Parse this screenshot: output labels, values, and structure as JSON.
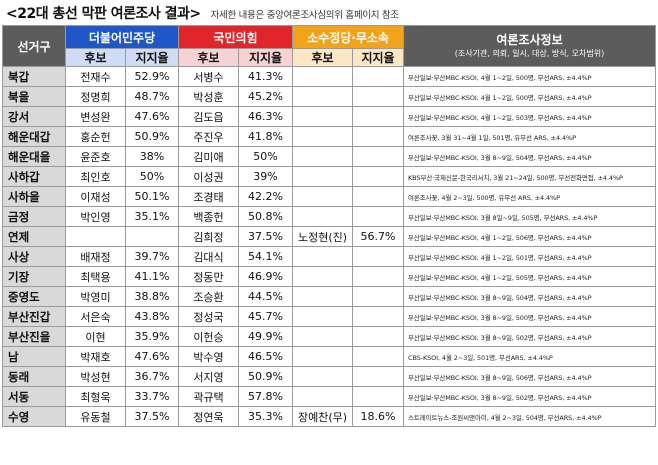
{
  "header": {
    "title": "<22대 총선 막판 여론조사 결과>",
    "subtitle": "자세한 내용은 중앙여론조사심의위 홈페이지 참조"
  },
  "columns": {
    "district": "선거구",
    "dem": "더불어민주당",
    "ppp": "국민의힘",
    "minor": "소수정당·무소속",
    "info": "여론조사정보",
    "info_sub": "(조사기관, 의뢰, 일시, 대상, 방식, 오차범위)",
    "candidate": "후보",
    "support": "지지율"
  },
  "rows": [
    {
      "district": "북갑",
      "dem_name": "전재수",
      "dem_pct": "52.9%",
      "ppp_name": "서병수",
      "ppp_pct": "41.3%",
      "minor_name": "",
      "minor_pct": "",
      "info": "부산일보·부산MBC-KSOI, 4월 1~2일, 500명, 무선ARS, ±4.4%P"
    },
    {
      "district": "북을",
      "dem_name": "정명희",
      "dem_pct": "48.7%",
      "ppp_name": "박성훈",
      "ppp_pct": "45.2%",
      "minor_name": "",
      "minor_pct": "",
      "info": "부산일보·부산MBC-KSOI, 4월 1~2일, 500명, 무선ARS, ±4.4%P"
    },
    {
      "district": "강서",
      "dem_name": "변성완",
      "dem_pct": "47.6%",
      "ppp_name": "김도읍",
      "ppp_pct": "46.3%",
      "minor_name": "",
      "minor_pct": "",
      "info": "부산일보·부산MBC-KSOI, 4월 1~2일, 503명, 무선ARS, ±4.4%P"
    },
    {
      "district": "해운대갑",
      "dem_name": "홍순헌",
      "dem_pct": "50.9%",
      "ppp_name": "주진우",
      "ppp_pct": "41.8%",
      "minor_name": "",
      "minor_pct": "",
      "info": "여론조사꽃, 3월 31~4월 1일, 501명, 유무선 ARS, ±4.4%P"
    },
    {
      "district": "해운대을",
      "dem_name": "윤준호",
      "dem_pct": "38%",
      "ppp_name": "김미애",
      "ppp_pct": "50%",
      "minor_name": "",
      "minor_pct": "",
      "info": "부산일보·부산MBC-KSOI, 3월 8~9일, 504명, 무선ARS, ±4.4%P"
    },
    {
      "district": "사하갑",
      "dem_name": "최인호",
      "dem_pct": "50%",
      "ppp_name": "이성권",
      "ppp_pct": "39%",
      "minor_name": "",
      "minor_pct": "",
      "info": "KBS부산·국제신문-한국리서치, 3월 21~24일, 500명, 무선전화면접, ±4.4%P"
    },
    {
      "district": "사하을",
      "dem_name": "이재성",
      "dem_pct": "50.1%",
      "ppp_name": "조경태",
      "ppp_pct": "42.2%",
      "minor_name": "",
      "minor_pct": "",
      "info": "여론조사꽃, 4월 2~3일, 500명, 유무선 ARS, ±4.4%P"
    },
    {
      "district": "금정",
      "dem_name": "박인영",
      "dem_pct": "35.1%",
      "ppp_name": "백종헌",
      "ppp_pct": "50.8%",
      "minor_name": "",
      "minor_pct": "",
      "info": "부산일보·부산MBC-KSOI, 3월 8일~9일, 505명, 무선ARS, ±4.4%P"
    },
    {
      "district": "연제",
      "dem_name": "",
      "dem_pct": "",
      "ppp_name": "김희정",
      "ppp_pct": "37.5%",
      "minor_name": "노정현(진)",
      "minor_pct": "56.7%",
      "info": "부산일보·부산MBC-KSOI, 4월 1~2일, 506명, 무선ARS, ±4.4%P"
    },
    {
      "district": "사상",
      "dem_name": "배재정",
      "dem_pct": "39.7%",
      "ppp_name": "김대식",
      "ppp_pct": "54.1%",
      "minor_name": "",
      "minor_pct": "",
      "info": "부산일보·부산MBC-KSOI, 4월 1~2일, 501명, 무선ARS, ±4.4%P"
    },
    {
      "district": "기장",
      "dem_name": "최택용",
      "dem_pct": "41.1%",
      "ppp_name": "정동만",
      "ppp_pct": "46.9%",
      "minor_name": "",
      "minor_pct": "",
      "info": "부산일보·부산MBC-KSOI, 4월 1~2일, 505명, 무선ARS, ±4.4%P"
    },
    {
      "district": "중영도",
      "dem_name": "박영미",
      "dem_pct": "38.8%",
      "ppp_name": "조승환",
      "ppp_pct": "44.5%",
      "minor_name": "",
      "minor_pct": "",
      "info": "부산일보·부산MBC-KSOI, 3월 8~9일, 504명, 무선ARS, ±4.4%P"
    },
    {
      "district": "부산진갑",
      "dem_name": "서은숙",
      "dem_pct": "43.8%",
      "ppp_name": "정성국",
      "ppp_pct": "45.7%",
      "minor_name": "",
      "minor_pct": "",
      "info": "부산일보·부산MBC-KSOI, 3월 8~9일, 500명, 무선ARS, ±4.4%P"
    },
    {
      "district": "부산진을",
      "dem_name": "이현",
      "dem_pct": "35.9%",
      "ppp_name": "이헌승",
      "ppp_pct": "49.9%",
      "minor_name": "",
      "minor_pct": "",
      "info": "부산일보·부산MBC-KSOI, 3월 8~9일, 502명, 무선ARS, ±4.4%P"
    },
    {
      "district": "남",
      "dem_name": "박재호",
      "dem_pct": "47.6%",
      "ppp_name": "박수영",
      "ppp_pct": "46.5%",
      "minor_name": "",
      "minor_pct": "",
      "info": "CBS-KSOI, 4월 2~3일, 501명, 무선ARS, ±4.4%P"
    },
    {
      "district": "동래",
      "dem_name": "박성현",
      "dem_pct": "36.7%",
      "ppp_name": "서지영",
      "ppp_pct": "50.9%",
      "minor_name": "",
      "minor_pct": "",
      "info": "부산일보·부산MBC-KSOI, 3월 8~9일, 506명, 무선ARS, ±4.4%P"
    },
    {
      "district": "서동",
      "dem_name": "최형욱",
      "dem_pct": "33.7%",
      "ppp_name": "곽규택",
      "ppp_pct": "57.8%",
      "minor_name": "",
      "minor_pct": "",
      "info": "부산일보·부산MBC-KSOI, 3월 8~9일, 502명, 무선ARS, ±4.4%P"
    },
    {
      "district": "수영",
      "dem_name": "유동철",
      "dem_pct": "37.5%",
      "ppp_name": "정연욱",
      "ppp_pct": "35.3%",
      "minor_name": "장예찬(무)",
      "minor_pct": "18.6%",
      "info": "스트레이트뉴스-조원씨앤아이, 4월 2~3일, 504명, 무선ARS, ±4.4%P"
    }
  ]
}
